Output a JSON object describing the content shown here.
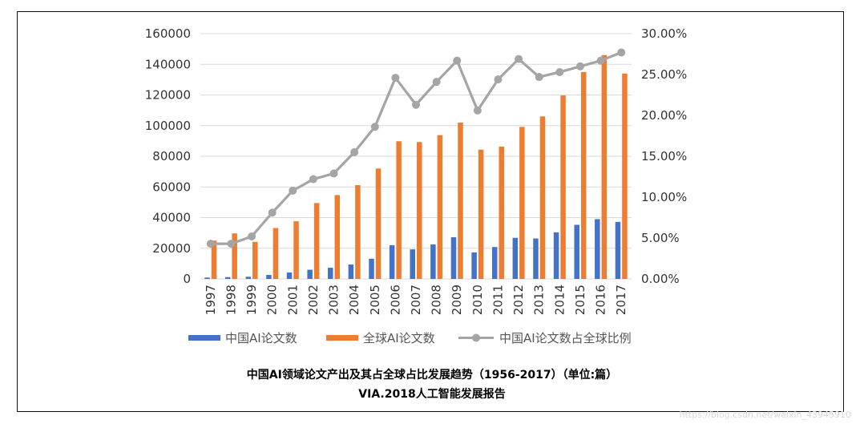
{
  "colors": {
    "china_bar": "#4472C4",
    "global_bar": "#ED7D31",
    "ratio_line": "#A5A5A5",
    "grid": "#D9D9D9"
  },
  "chart_data": {
    "type": "bar",
    "categories": [
      "1997",
      "1998",
      "1999",
      "2000",
      "2001",
      "2002",
      "2003",
      "2004",
      "2005",
      "2006",
      "2007",
      "2008",
      "2009",
      "2010",
      "2011",
      "2012",
      "2013",
      "2014",
      "2015",
      "2016",
      "2017"
    ],
    "series": [
      {
        "name": "中国AI论文数",
        "type": "bar",
        "axis": "left",
        "values": [
          900,
          1200,
          1400,
          2600,
          4200,
          6000,
          7300,
          9400,
          13200,
          22000,
          19300,
          22500,
          27200,
          17300,
          20800,
          26800,
          26400,
          30400,
          35300,
          39000,
          37200
        ]
      },
      {
        "name": "全球AI论文数",
        "type": "bar",
        "axis": "left",
        "values": [
          25000,
          29700,
          24200,
          33200,
          37600,
          49500,
          54700,
          61200,
          72000,
          89800,
          89300,
          93800,
          102000,
          84300,
          86300,
          99200,
          106000,
          119700,
          135000,
          146000,
          134000
        ]
      },
      {
        "name": "中国AI论文数占全球比例",
        "type": "line",
        "axis": "right",
        "values": [
          4.3,
          4.3,
          5.2,
          8.1,
          10.8,
          12.2,
          12.9,
          15.5,
          18.6,
          24.6,
          21.3,
          24.1,
          26.7,
          20.6,
          24.4,
          26.9,
          24.7,
          25.3,
          26.0,
          26.7,
          27.7
        ]
      }
    ],
    "y_left": {
      "min": 0,
      "max": 160000,
      "ticks": [
        "160000",
        "140000",
        "120000",
        "100000",
        "80000",
        "60000",
        "40000",
        "20000",
        "0"
      ]
    },
    "y_right": {
      "min": 0,
      "max": 30,
      "unit": "%",
      "ticks": [
        "30.00%",
        "25.00%",
        "20.00%",
        "15.00%",
        "10.00%",
        "5.00%",
        "0.00%"
      ]
    },
    "grid": true,
    "legend_position": "bottom"
  },
  "caption": {
    "line1": "中国AI领域论文产出及其占全球占比发展趋势（1956-2017）（单位:篇）",
    "line2": "VIA.2018人工智能发展报告"
  },
  "watermark": "https://blog.csdn.net/weixin_43945910"
}
